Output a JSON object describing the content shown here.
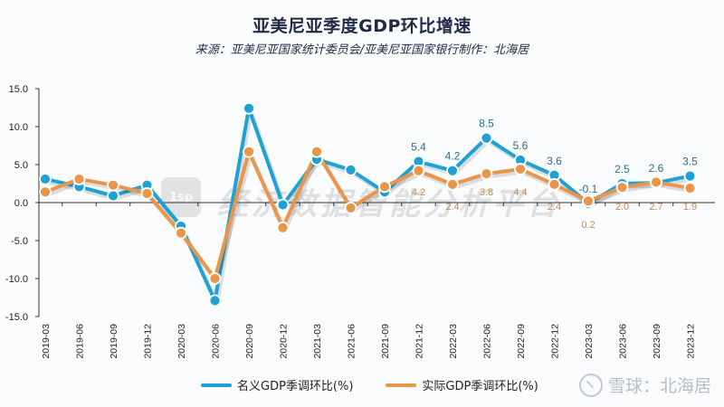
{
  "header": {
    "title": "亚美尼亚季度GDP环比增速",
    "subtitle": "来源：亚美尼亚国家统计委员会/亚美尼亚国家银行制作：北海居"
  },
  "watermark": {
    "logo_text": "1sp",
    "text": "经济数据智能分析平台"
  },
  "brand": {
    "text": "雪球：北海居"
  },
  "colors": {
    "nominal": "#1ea2d6",
    "real": "#e8974a",
    "axis": "#333333"
  },
  "legend": {
    "nominal_label": "名义GDP季调环比(%)",
    "real_label": "实际GDP季调环比(%)"
  },
  "chart_data": {
    "type": "line",
    "title": "亚美尼亚季度GDP环比增速",
    "subtitle": "来源：亚美尼亚国家统计委员会/亚美尼亚国家银行制作：北海居",
    "xlabel": "",
    "ylabel": "",
    "ylim": [
      -15,
      15
    ],
    "yticks": [
      "15.0",
      "10.0",
      "5.0",
      "0.0",
      "-5.0",
      "-10.0",
      "-15.0"
    ],
    "grid": false,
    "legend_position": "bottom",
    "categories": [
      "2019-03",
      "2019-06",
      "2019-09",
      "2019-12",
      "2020-03",
      "2020-06",
      "2020-09",
      "2020-12",
      "2021-03",
      "2021-06",
      "2021-09",
      "2021-12",
      "2022-03",
      "2022-06",
      "2022-09",
      "2022-12",
      "2023-03",
      "2023-06",
      "2023-09",
      "2023-12"
    ],
    "series": [
      {
        "name": "名义GDP季调环比(%)",
        "values": [
          3.1,
          2.1,
          0.9,
          2.3,
          -3.1,
          -12.9,
          12.4,
          -0.3,
          5.7,
          4.3,
          1.4,
          5.4,
          4.2,
          8.5,
          5.6,
          3.6,
          -0.1,
          2.5,
          2.6,
          3.5
        ],
        "labels": [
          "",
          "",
          "",
          "",
          "",
          "",
          "",
          "",
          "",
          "",
          "",
          "5.4",
          "4.2",
          "8.5",
          "5.6",
          "3.6",
          "-0.1",
          "2.5",
          "2.6",
          "3.5"
        ]
      },
      {
        "name": "实际GDP季调环比(%)",
        "values": [
          1.4,
          3.1,
          2.3,
          1.2,
          -4.0,
          -10.0,
          6.7,
          -3.3,
          6.7,
          -0.7,
          2.1,
          4.2,
          2.4,
          3.8,
          4.4,
          2.4,
          0.2,
          2.0,
          2.7,
          1.9
        ],
        "labels": [
          "",
          "",
          "",
          "",
          "",
          "",
          "",
          "",
          "",
          "",
          "",
          "4.2",
          "2.4",
          "3.8",
          "4.4",
          "2.4",
          "0.2",
          "2.0",
          "2.7",
          "1.9"
        ]
      }
    ]
  }
}
